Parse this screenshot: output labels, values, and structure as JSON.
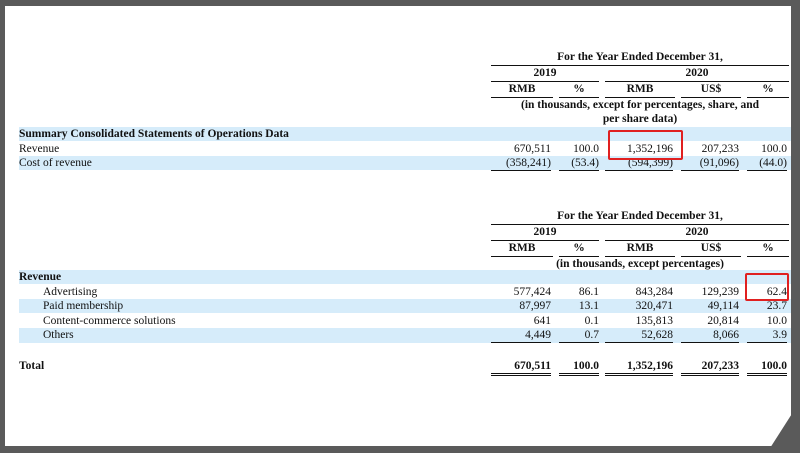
{
  "table1": {
    "period_header": "For the Year Ended December 31,",
    "year_2019": "2019",
    "year_2020": "2020",
    "col_headers": [
      "RMB",
      "%",
      "RMB",
      "US$",
      "%"
    ],
    "units_note_line1": "(in thousands, except for percentages, share, and",
    "units_note_line2": "per share data)",
    "section_title": "Summary Consolidated Statements of Operations Data",
    "rows": [
      {
        "label": "Revenue",
        "values": [
          "670,511",
          "100.0",
          "1,352,196",
          "207,233",
          "100.0"
        ]
      },
      {
        "label": "Cost of revenue",
        "values": [
          "(358,241)",
          "(53.4)",
          "(594,399)",
          "(91,096)",
          "(44.0)"
        ]
      }
    ]
  },
  "table2": {
    "period_header": "For the Year Ended December 31,",
    "year_2019": "2019",
    "year_2020": "2020",
    "col_headers": [
      "RMB",
      "%",
      "RMB",
      "US$",
      "%"
    ],
    "units_note": "(in thousands, except percentages)",
    "section_title": "Revenue",
    "rows": [
      {
        "label": "Advertising",
        "values": [
          "577,424",
          "86.1",
          "843,284",
          "129,239",
          "62.4"
        ]
      },
      {
        "label": "Paid membership",
        "values": [
          "87,997",
          "13.1",
          "320,471",
          "49,114",
          "23.7"
        ]
      },
      {
        "label": "Content-commerce solutions",
        "values": [
          "641",
          "0.1",
          "135,813",
          "20,814",
          "10.0"
        ]
      },
      {
        "label": "Others",
        "values": [
          "4,449",
          "0.7",
          "52,628",
          "8,066",
          "3.9"
        ]
      }
    ],
    "total": {
      "label": "Total",
      "values": [
        "670,511",
        "100.0",
        "1,352,196",
        "207,233",
        "100.0"
      ]
    }
  },
  "highlight_color": "#e02020",
  "band_color": "#d6ecfa"
}
